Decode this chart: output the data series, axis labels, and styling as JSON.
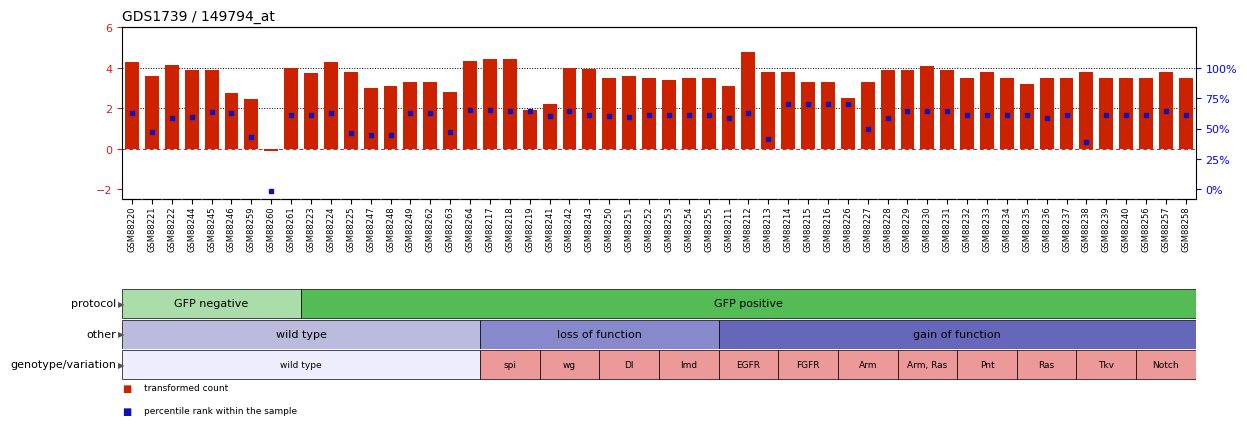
{
  "title": "GDS1739 / 149794_at",
  "samples": [
    "GSM88220",
    "GSM88221",
    "GSM88222",
    "GSM88244",
    "GSM88245",
    "GSM88246",
    "GSM88259",
    "GSM88260",
    "GSM88261",
    "GSM88223",
    "GSM88224",
    "GSM88225",
    "GSM88247",
    "GSM88248",
    "GSM88249",
    "GSM88262",
    "GSM88263",
    "GSM88264",
    "GSM88217",
    "GSM88218",
    "GSM88219",
    "GSM88241",
    "GSM88242",
    "GSM88243",
    "GSM88250",
    "GSM88251",
    "GSM88252",
    "GSM88253",
    "GSM88254",
    "GSM88255",
    "GSM88211",
    "GSM88212",
    "GSM88213",
    "GSM88214",
    "GSM88215",
    "GSM88216",
    "GSM88226",
    "GSM88227",
    "GSM88228",
    "GSM88229",
    "GSM88230",
    "GSM88231",
    "GSM88232",
    "GSM88233",
    "GSM88234",
    "GSM88235",
    "GSM88236",
    "GSM88237",
    "GSM88238",
    "GSM88239",
    "GSM88240",
    "GSM88256",
    "GSM88257",
    "GSM88258"
  ],
  "bar_values": [
    4.3,
    3.6,
    4.15,
    3.9,
    3.9,
    2.75,
    2.45,
    -0.12,
    4.0,
    3.75,
    4.3,
    3.8,
    3.0,
    3.1,
    3.3,
    3.3,
    2.8,
    4.35,
    4.45,
    4.45,
    1.9,
    2.2,
    4.0,
    3.95,
    3.5,
    3.6,
    3.5,
    3.4,
    3.5,
    3.5,
    3.1,
    4.8,
    3.8,
    3.8,
    3.3,
    3.3,
    2.5,
    3.3,
    3.9,
    3.9,
    4.1,
    3.9,
    3.5,
    3.8,
    3.5,
    3.2,
    3.5,
    3.5,
    3.8,
    3.5,
    3.5,
    3.5,
    3.8,
    3.5
  ],
  "percentile_values": [
    1.75,
    0.85,
    1.5,
    1.55,
    1.8,
    1.75,
    0.6,
    -2.1,
    1.65,
    1.65,
    1.75,
    0.8,
    0.7,
    0.7,
    1.75,
    1.75,
    0.85,
    1.9,
    1.9,
    1.85,
    1.85,
    1.6,
    1.85,
    1.65,
    1.6,
    1.55,
    1.65,
    1.65,
    1.65,
    1.65,
    1.5,
    1.75,
    0.5,
    2.2,
    2.2,
    2.2,
    2.2,
    1.0,
    1.5,
    1.85,
    1.85,
    1.85,
    1.65,
    1.65,
    1.65,
    1.65,
    1.5,
    1.65,
    0.35,
    1.65,
    1.65,
    1.65,
    1.85,
    1.65
  ],
  "ylim": [
    -2.5,
    6.0
  ],
  "yticks_left": [
    -2,
    0,
    2,
    4,
    6
  ],
  "yticks_right_vals": [
    0,
    25,
    50,
    75,
    100
  ],
  "yticks_right_pos": [
    -2.0,
    -0.5,
    1.0,
    2.5,
    4.0
  ],
  "bar_color": "#CC2200",
  "percentile_color": "#1111BB",
  "protocol_sections": [
    {
      "label": "GFP negative",
      "start": 0,
      "end": 9,
      "color": "#AADDAA"
    },
    {
      "label": "GFP positive",
      "start": 9,
      "end": 54,
      "color": "#55BB55"
    }
  ],
  "other_sections": [
    {
      "label": "wild type",
      "start": 0,
      "end": 18,
      "color": "#BBBBDD"
    },
    {
      "label": "loss of function",
      "start": 18,
      "end": 30,
      "color": "#8888CC"
    },
    {
      "label": "gain of function",
      "start": 30,
      "end": 54,
      "color": "#6666BB"
    }
  ],
  "genotype_sections": [
    {
      "label": "wild type",
      "start": 0,
      "end": 18,
      "color": "#EEEEFF"
    },
    {
      "label": "spi",
      "start": 18,
      "end": 21,
      "color": "#EE9999"
    },
    {
      "label": "wg",
      "start": 21,
      "end": 24,
      "color": "#EE9999"
    },
    {
      "label": "Dl",
      "start": 24,
      "end": 27,
      "color": "#EE9999"
    },
    {
      "label": "Imd",
      "start": 27,
      "end": 30,
      "color": "#EE9999"
    },
    {
      "label": "EGFR",
      "start": 30,
      "end": 33,
      "color": "#EE9999"
    },
    {
      "label": "FGFR",
      "start": 33,
      "end": 36,
      "color": "#EE9999"
    },
    {
      "label": "Arm",
      "start": 36,
      "end": 39,
      "color": "#EE9999"
    },
    {
      "label": "Arm, Ras",
      "start": 39,
      "end": 42,
      "color": "#EE9999"
    },
    {
      "label": "Pnt",
      "start": 42,
      "end": 45,
      "color": "#EE9999"
    },
    {
      "label": "Ras",
      "start": 45,
      "end": 48,
      "color": "#EE9999"
    },
    {
      "label": "Tkv",
      "start": 48,
      "end": 51,
      "color": "#EE9999"
    },
    {
      "label": "Notch",
      "start": 51,
      "end": 54,
      "color": "#EE9999"
    }
  ],
  "legend_items": [
    {
      "color": "#CC2200",
      "label": "transformed count"
    },
    {
      "color": "#1111BB",
      "label": "percentile rank within the sample"
    }
  ],
  "row_labels": [
    "protocol",
    "other",
    "genotype/variation"
  ],
  "title_fontsize": 10,
  "annot_fontsize": 8,
  "label_fontsize": 8,
  "tick_fontsize": 6
}
